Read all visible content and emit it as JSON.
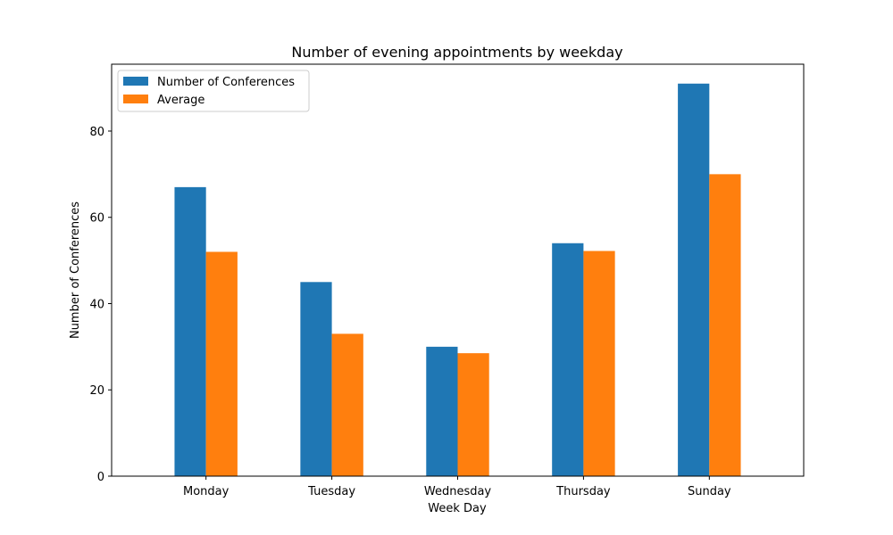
{
  "chart_data": {
    "type": "bar",
    "title": "Number of evening appointments by weekday",
    "xlabel": "Week Day",
    "ylabel": "Number of Conferences",
    "categories": [
      "Monday",
      "Tuesday",
      "Wednesday",
      "Thursday",
      "Sunday"
    ],
    "series": [
      {
        "name": "Number of Conferences",
        "values": [
          67,
          45,
          30,
          54,
          91
        ],
        "color": "#1f77b4"
      },
      {
        "name": "Average",
        "values": [
          52,
          33,
          28.5,
          52.2,
          70
        ],
        "color": "#ff7f0e"
      }
    ],
    "ylim": [
      0,
      95.5
    ],
    "yticks": [
      0,
      20,
      40,
      60,
      80
    ],
    "grid": false,
    "legend_position": "top-left"
  }
}
